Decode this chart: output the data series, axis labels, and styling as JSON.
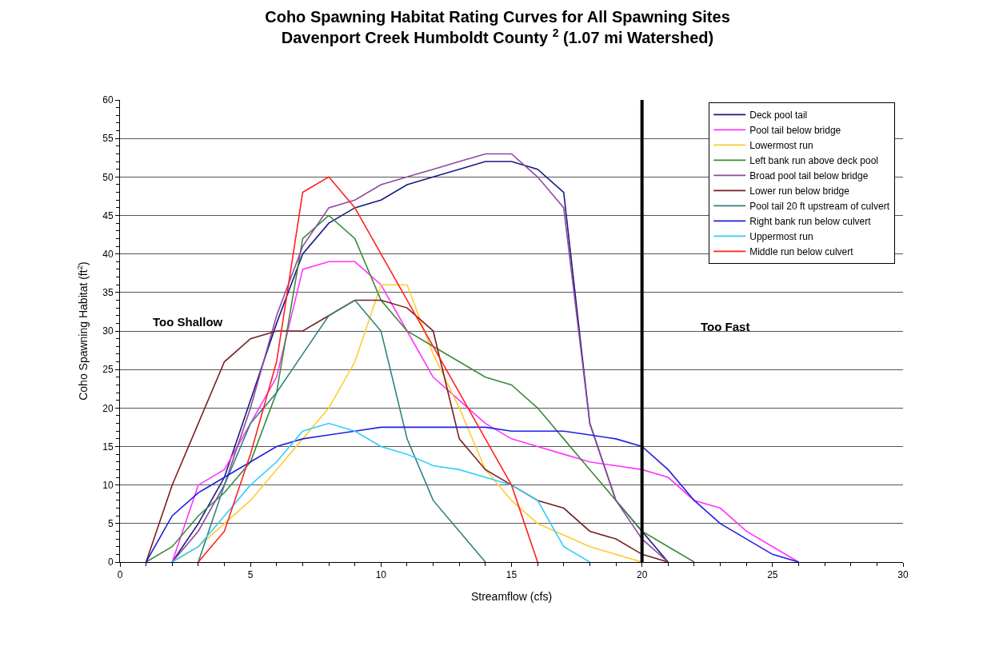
{
  "chart_data": {
    "type": "line",
    "title": "Coho Spawning Habitat Rating Curves for All Spawning Sites",
    "subtitle": "Davenport Creek Humboldt County $^{2}$ (1.07 mi Watershed)",
    "xlabel": "Streamflow (cfs)",
    "ylabel": "Coho Spawning Habitat (ft$^{2}$)",
    "xlim": [
      0,
      30
    ],
    "xticks": [
      0,
      5,
      10,
      15,
      20,
      25,
      30
    ],
    "ylim": [
      0,
      60
    ],
    "yticks": [
      0,
      5,
      10,
      15,
      20,
      25,
      30,
      35,
      40,
      45,
      50,
      55,
      60
    ],
    "grid": "y",
    "legend": "top right",
    "marker": "none",
    "line_style": "solid",
    "annotations": [
      "Too Shallow",
      "Too Fast"
    ],
    "ref_lines": [
      {
        "axis": "x",
        "value": 20,
        "label": null,
        "color": "#000000"
      }
    ],
    "series": [
      {
        "name": "Deck pool tail",
        "color": "#1a1a80",
        "x": [
          2,
          3,
          4,
          5,
          6,
          7,
          8,
          9,
          10,
          11,
          12,
          13,
          14,
          15,
          16,
          17,
          18,
          19,
          20,
          21
        ],
        "values": [
          0,
          5,
          11,
          21,
          31,
          40,
          44,
          46,
          47,
          49,
          50,
          51,
          52,
          52,
          51,
          48,
          18,
          8,
          4,
          0
        ]
      },
      {
        "name": "Pool tail below bridge",
        "color": "#ff33ff",
        "x": [
          2,
          3,
          4,
          5,
          6,
          7,
          8,
          9,
          10,
          11,
          12,
          13,
          14,
          15,
          16,
          17,
          18,
          19,
          20,
          21,
          22,
          23,
          24,
          25,
          26
        ],
        "values": [
          0,
          10,
          12,
          18,
          24,
          38,
          39,
          39,
          36,
          30,
          24,
          21,
          18,
          16,
          15,
          14,
          13,
          12.5,
          12,
          11,
          8,
          7,
          4,
          2,
          0
        ]
      },
      {
        "name": "Lowermost run",
        "color": "#ffcc33",
        "x": [
          2,
          3,
          4,
          5,
          6,
          7,
          8,
          9,
          10,
          11,
          12,
          13,
          14,
          15,
          16,
          17,
          18,
          19,
          20
        ],
        "values": [
          0,
          2,
          5,
          8,
          12,
          16,
          20,
          26,
          36,
          36,
          27,
          20,
          12,
          8,
          5,
          3.5,
          2,
          1,
          0
        ]
      },
      {
        "name": "Left bank run above deck pool",
        "color": "#3a8a3a",
        "x": [
          1,
          2,
          3,
          4,
          5,
          6,
          7,
          8,
          9,
          10,
          11,
          12,
          13,
          14,
          15,
          16,
          17,
          18,
          19,
          20,
          21,
          22
        ],
        "values": [
          0,
          2,
          6,
          9,
          13,
          22,
          42,
          45,
          42,
          34,
          30,
          28,
          26,
          24,
          23,
          20,
          16,
          12,
          8,
          4,
          2,
          0
        ]
      },
      {
        "name": "Broad pool tail below bridge",
        "color": "#8e4a9e",
        "x": [
          2,
          3,
          4,
          5,
          6,
          7,
          8,
          9,
          10,
          11,
          12,
          13,
          14,
          15,
          16,
          17,
          18,
          19,
          20,
          21
        ],
        "values": [
          0,
          4,
          10,
          20,
          32,
          41,
          46,
          47,
          49,
          50,
          51,
          52,
          53,
          53,
          50,
          46,
          18,
          8,
          3,
          0
        ]
      },
      {
        "name": "Lower run below bridge",
        "color": "#7a1f1f",
        "x": [
          1,
          2,
          3,
          4,
          5,
          6,
          7,
          8,
          9,
          10,
          11,
          12,
          13,
          14,
          15,
          16,
          17,
          18,
          19,
          20,
          21
        ],
        "values": [
          0,
          10,
          18,
          26,
          29,
          30,
          30,
          32,
          34,
          34,
          33,
          30,
          16,
          12,
          10,
          8,
          7,
          4,
          3,
          1,
          0
        ]
      },
      {
        "name": "Pool tail 20 ft upstream of culvert",
        "color": "#338080",
        "x": [
          3,
          4,
          5,
          6,
          7,
          8,
          9,
          10,
          11,
          12,
          13,
          14
        ],
        "values": [
          0,
          10,
          18,
          22,
          27,
          32,
          34,
          30,
          16,
          8,
          4,
          0
        ]
      },
      {
        "name": "Right bank run below culvert",
        "color": "#2020e0",
        "x": [
          1,
          2,
          3,
          4,
          5,
          6,
          7,
          8,
          9,
          10,
          11,
          12,
          13,
          14,
          15,
          16,
          17,
          18,
          19,
          20,
          21,
          22,
          23,
          24,
          25,
          26
        ],
        "values": [
          0,
          6,
          9,
          11,
          13,
          15,
          16,
          16.5,
          17,
          17.5,
          17.5,
          17.5,
          17.5,
          17.5,
          17,
          17,
          17,
          16.5,
          16,
          15,
          12,
          8,
          5,
          3,
          1,
          0
        ]
      },
      {
        "name": "Uppermost run",
        "color": "#33ccff",
        "x": [
          2,
          3,
          4,
          5,
          6,
          7,
          8,
          9,
          10,
          11,
          12,
          13,
          14,
          15,
          16,
          17,
          18
        ],
        "values": [
          0,
          2,
          6,
          10,
          13,
          17,
          18,
          17,
          15,
          14,
          12.5,
          12,
          11,
          10,
          8,
          2,
          0
        ]
      },
      {
        "name": "Middle run below culvert",
        "color": "#ff2020",
        "x": [
          3,
          4,
          5,
          6,
          7,
          8,
          9,
          10,
          11,
          12,
          13,
          14,
          15,
          16
        ],
        "values": [
          0,
          4,
          14,
          26,
          48,
          50,
          46,
          40,
          34,
          28,
          22,
          16,
          10,
          0
        ]
      }
    ]
  }
}
